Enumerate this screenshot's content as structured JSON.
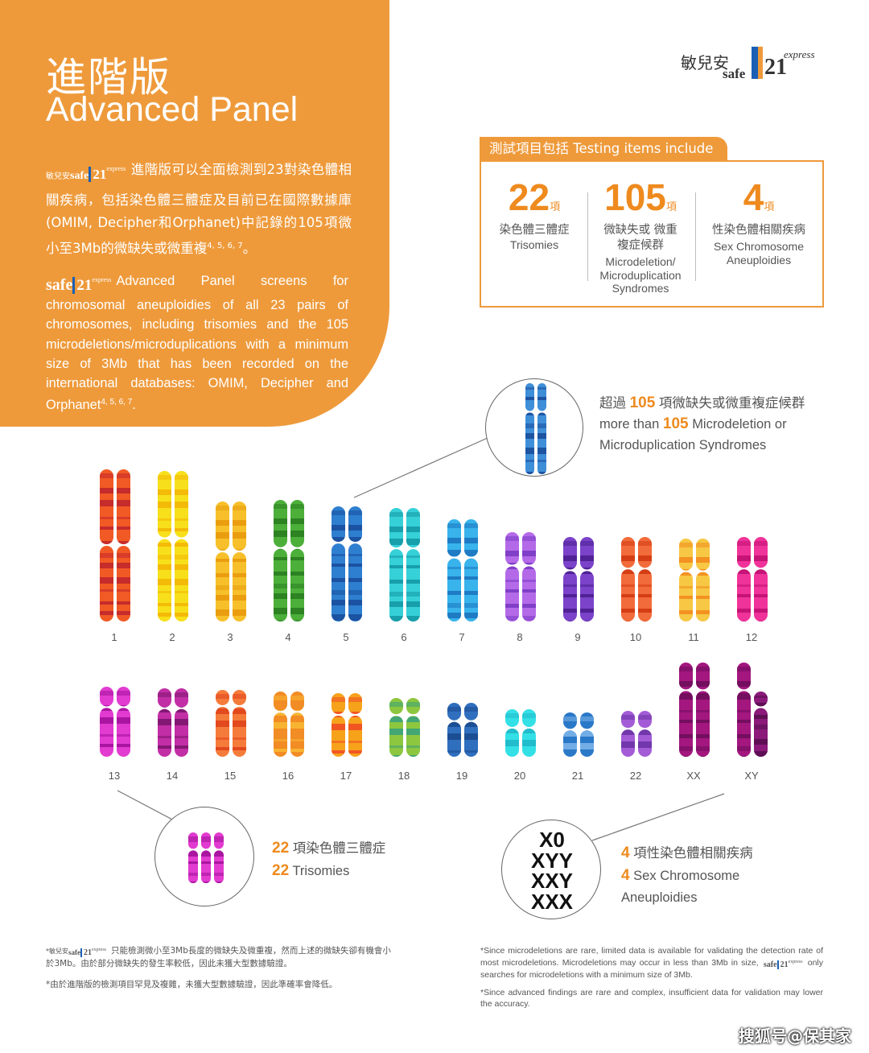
{
  "header": {
    "title_zh": "進階版",
    "title_en": "Advanced Panel",
    "desc_zh_prefix": "敏兒安",
    "desc_zh": "進階版可以全面檢測到23對染色體相關疾病，包括染色體三體症及目前已在國際數據庫(OMIM, Decipher和Orphanet)中記錄的105項微小至3Mb的微缺失或微重複",
    "desc_zh_ref": "4, 5, 6, 7",
    "desc_zh_end": "。",
    "desc_en": "Advanced Panel screens for chromosomal aneuploidies of all 23 pairs of chromosomes, including trisomies and the 105 microdeletions/microduplications with a minimum size of 3Mb that has been recorded on the international databases: OMIM, Decipher and Orphanet",
    "desc_en_ref": "4, 5, 6, 7",
    "desc_en_end": "."
  },
  "logo": {
    "zh": "敏兒安",
    "safe": "safe",
    "number": "21",
    "express": "express"
  },
  "testing_box": {
    "tab_label": "測試項目包括 Testing items include",
    "unit": "項",
    "items": [
      {
        "count": "22",
        "label_zh": "染色體三體症",
        "label_en": "Trisomies"
      },
      {
        "count": "105",
        "label_zh": "微缺失或 微重複症候群",
        "label_en": "Microdeletion/ Microduplication Syndromes"
      },
      {
        "count": "4",
        "label_zh": "性染色體相關疾病",
        "label_en": "Sex Chromosome Aneuploidies"
      }
    ]
  },
  "chromosome_labels": [
    "1",
    "2",
    "3",
    "4",
    "5",
    "6",
    "7",
    "8",
    "9",
    "10",
    "11",
    "12",
    "13",
    "14",
    "15",
    "16",
    "17",
    "18",
    "19",
    "20",
    "21",
    "22",
    "XX",
    "XY"
  ],
  "callouts": {
    "micro": {
      "count": "105",
      "line1_zh_pre": "超過",
      "line1_zh_post": "項微缺失或微重複症候群",
      "line2_en_pre": "more than",
      "line2_en_post": "Microdeletion or",
      "line3_en": "Microduplication Syndromes"
    },
    "trisomy": {
      "count": "22",
      "line_zh": "項染色體三體症",
      "line_en": "Trisomies"
    },
    "sex": {
      "count": "4",
      "line_zh": "項性染色體相關疾病",
      "line_en1": "Sex Chromosome",
      "line_en2": "Aneuploidies",
      "karyotypes": [
        "X0",
        "XYY",
        "XXY",
        "XXX"
      ]
    }
  },
  "footnotes": {
    "zh1_prefix": "*敏兒安",
    "zh1": "只能檢測微小至3Mb長度的微缺失及微重複，然而上述的微缺失卻有機會小於3Mb。由於部分微缺失的發生率較低，因此未獲大型數據驗證。",
    "zh2": "*由於進階版的檢測項目罕見及複雜，未獲大型數據驗證，因此準確率會降低。",
    "en1_pre": "*Since microdeletions are rare, limited data is available for validating the detection rate of most microdeletions. Microdeletions may occur in less than 3Mb in size,",
    "en1_post": "only searches for microdeletions with a minimum size of 3Mb.",
    "en2": "*Since advanced findings are rare and complex, insufficient data for validation may lower the accuracy."
  },
  "watermark": "搜狐号@保其家",
  "colors": {
    "accent": "#ee9a3b",
    "number": "#ee8a1e",
    "logo_blue": "#1a5fb4"
  }
}
